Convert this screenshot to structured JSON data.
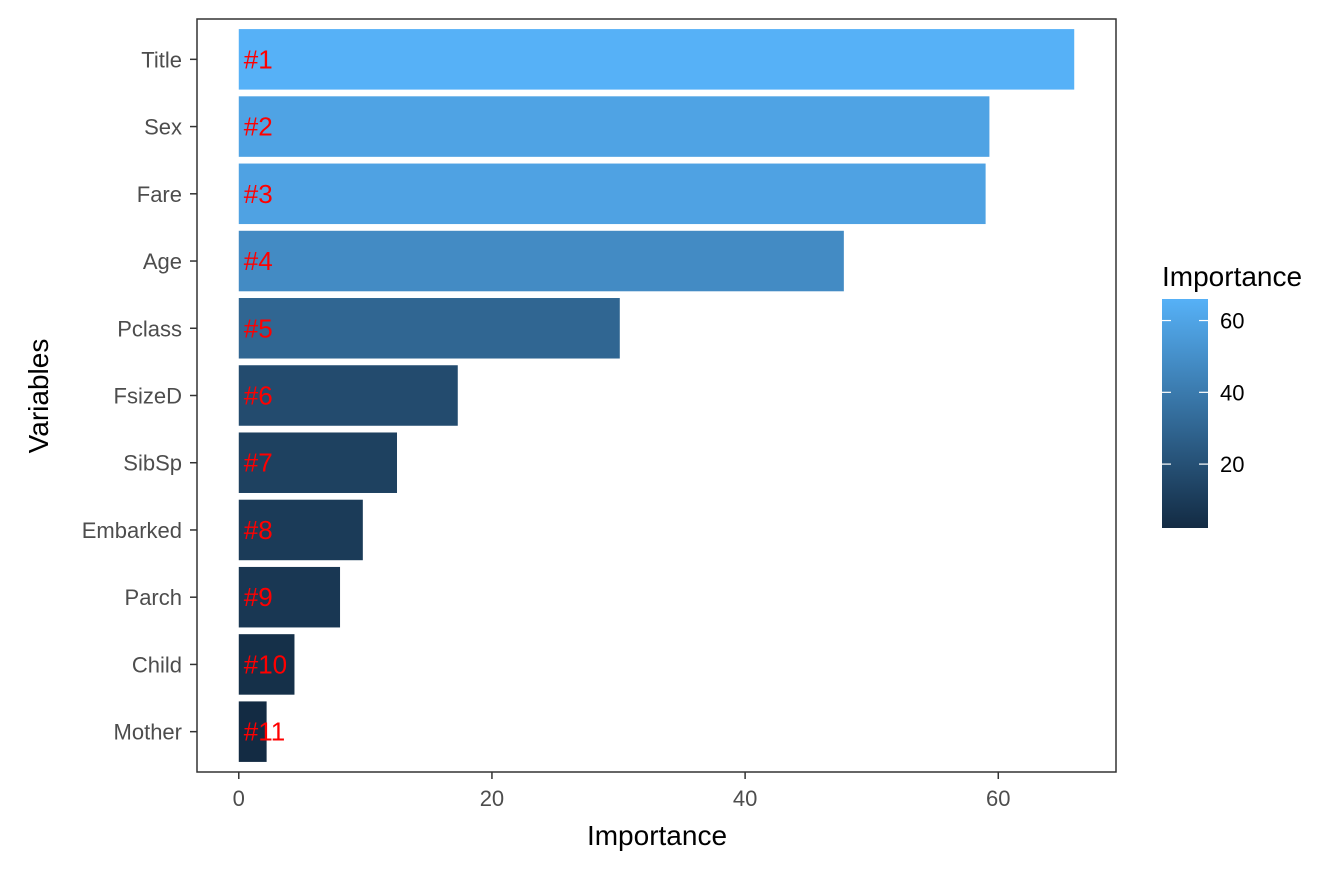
{
  "chart_data": {
    "type": "bar",
    "orientation": "horizontal",
    "categories": [
      "Title",
      "Sex",
      "Fare",
      "Age",
      "Pclass",
      "FsizeD",
      "SibSp",
      "Embarked",
      "Parch",
      "Child",
      "Mother"
    ],
    "values": [
      66.0,
      59.3,
      59.0,
      47.8,
      30.1,
      17.3,
      12.5,
      9.8,
      8.0,
      4.4,
      2.2
    ],
    "rank_labels": [
      "#1",
      "#2",
      "#3",
      "#4",
      "#5",
      "#6",
      "#7",
      "#8",
      "#9",
      "#10",
      "#11"
    ],
    "xlabel": "Importance",
    "ylabel": "Variables",
    "xlim": [
      -3.3,
      69.3
    ],
    "x_ticks": [
      "0",
      "20",
      "40",
      "60"
    ],
    "x_tick_values": [
      0,
      20,
      40,
      60
    ],
    "grid": false,
    "fill_by": "value",
    "color_scale": {
      "low": "#132b43",
      "high": "#56b1f7",
      "min": 2.2,
      "max": 66.0
    },
    "rank_label_color": "#ff0000",
    "legend": {
      "title": "Importance",
      "placement": "right",
      "ticks": [
        "20",
        "40",
        "60"
      ],
      "tick_values": [
        20,
        40,
        60
      ]
    }
  }
}
